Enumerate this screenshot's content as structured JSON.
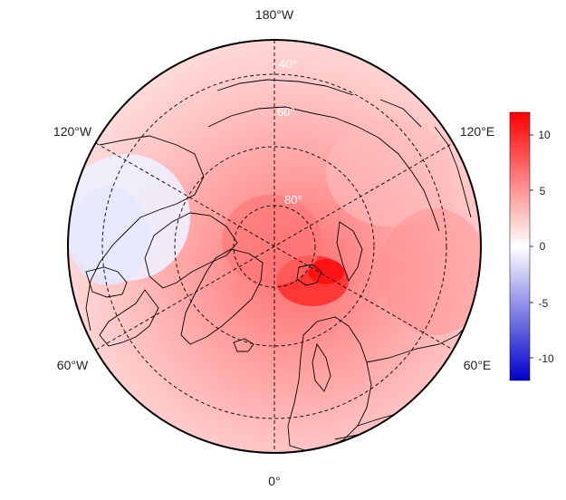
{
  "map": {
    "projection": "north-polar-stereographic",
    "longitude_labels": {
      "top": "180°W",
      "bottom": "0°",
      "upper_left": "120°W",
      "upper_right": "120°E",
      "lower_left": "60°W",
      "lower_right": "60°E"
    },
    "latitude_labels": [
      "80°",
      "60°",
      "40°"
    ],
    "colors": {
      "background_warm": "#ffd2d2",
      "anomaly_strong": "#ff1a1a",
      "anomaly_cool": "#dfe3ff",
      "coastline": "#000000",
      "graticule": "#000000"
    }
  },
  "colorbar": {
    "range": [
      -12,
      12
    ],
    "ticks": [
      "10",
      "5",
      "0",
      "-5",
      "-10"
    ],
    "colors": {
      "low": "#0000cc",
      "mid": "#ffffff",
      "high": "#ff0000"
    }
  }
}
